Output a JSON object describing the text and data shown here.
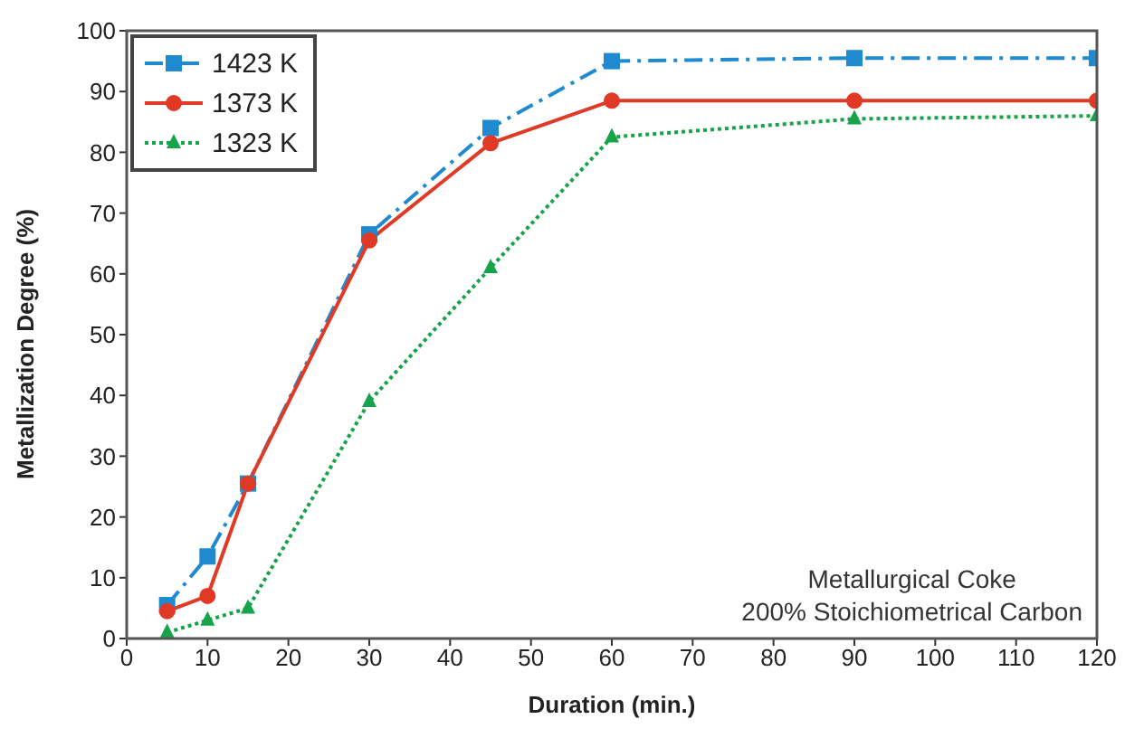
{
  "chart_data": {
    "type": "line",
    "xlabel": "Duration (min.)",
    "ylabel": "Metallization Degree (%)",
    "x": [
      5,
      10,
      15,
      30,
      45,
      60,
      90,
      120
    ],
    "series": [
      {
        "name": "1423 K",
        "color": "#1f8ad0",
        "marker": "square",
        "line_style": "dashed",
        "values": [
          5.5,
          13.5,
          25.5,
          66.5,
          84,
          95,
          95.5,
          95.5
        ]
      },
      {
        "name": "1373 K",
        "color": "#e03a26",
        "marker": "circle",
        "line_style": "solid",
        "values": [
          4.5,
          7,
          25.5,
          65.5,
          81.5,
          88.5,
          88.5,
          88.5
        ]
      },
      {
        "name": "1323 K",
        "color": "#17a34a",
        "marker": "triangle",
        "line_style": "dotted",
        "values": [
          1,
          3,
          5,
          39,
          61,
          82.5,
          85.5,
          86
        ]
      }
    ],
    "xlim": [
      0,
      120
    ],
    "xticks": [
      0,
      10,
      20,
      30,
      40,
      50,
      60,
      70,
      80,
      90,
      100,
      110,
      120
    ],
    "ylim": [
      0,
      100
    ],
    "yticks": [
      0,
      10,
      20,
      30,
      40,
      50,
      60,
      70,
      80,
      90,
      100
    ],
    "grid": false,
    "legend": "top left",
    "annotations": [
      "Metallurgical Coke",
      "200% Stoichiometrical Carbon"
    ]
  }
}
